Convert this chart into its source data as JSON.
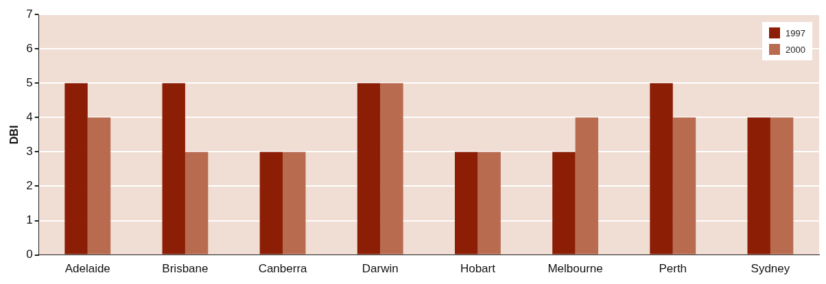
{
  "chart_data": {
    "type": "bar",
    "ylabel": "DBI",
    "categories": [
      "Adelaide",
      "Brisbane",
      "Canberra",
      "Darwin",
      "Hobart",
      "Melbourne",
      "Perth",
      "Sydney"
    ],
    "series": [
      {
        "name": "1997",
        "color": "#8b1e04",
        "values": [
          5,
          5,
          3,
          5,
          3,
          3,
          5,
          4
        ]
      },
      {
        "name": "2000",
        "color": "#b86b4f",
        "values": [
          4,
          3,
          3,
          5,
          3,
          4,
          4,
          4
        ]
      }
    ],
    "ylim": [
      0,
      7
    ],
    "yticks": [
      0,
      1,
      2,
      3,
      4,
      5,
      6,
      7
    ],
    "grid": "y",
    "legend": "top right"
  }
}
